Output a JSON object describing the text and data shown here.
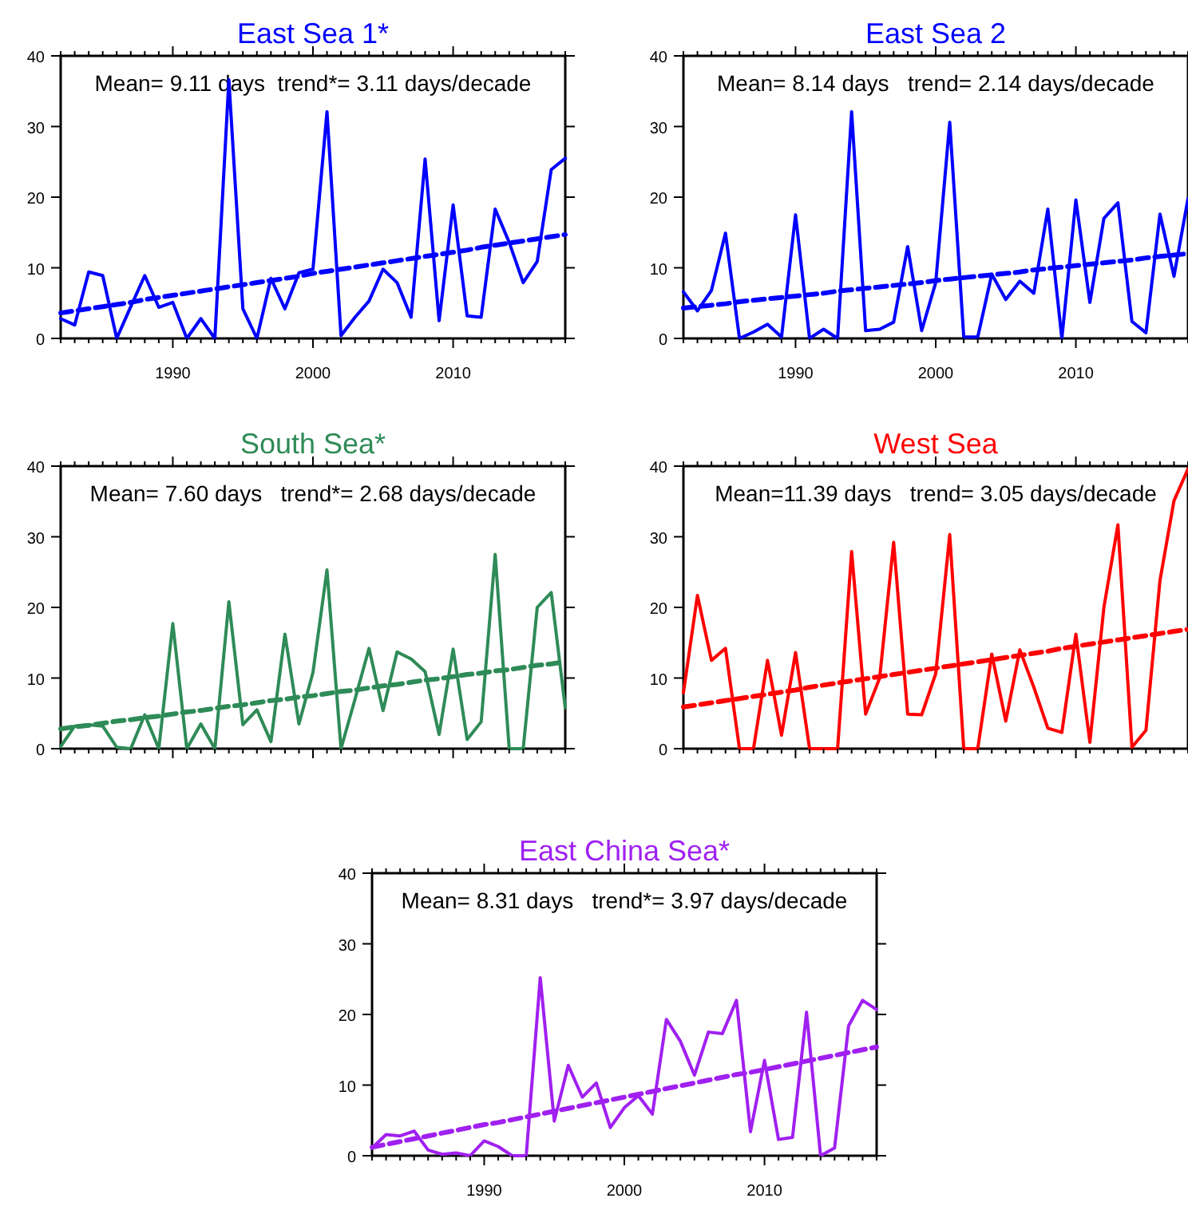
{
  "chart_data": [
    {
      "type": "line",
      "title": "East Sea 1*",
      "annotations": [
        "Mean= 9.11 days  trend*= 3.11 days/decade"
      ],
      "x": [
        1982,
        1983,
        1984,
        1985,
        1986,
        1987,
        1988,
        1989,
        1990,
        1991,
        1992,
        1993,
        1994,
        1995,
        1996,
        1997,
        1998,
        1999,
        2000,
        2001,
        2002,
        2003,
        2004,
        2005,
        2006,
        2007,
        2008,
        2009,
        2010,
        2011,
        2012,
        2013,
        2014,
        2015,
        2016,
        2017,
        2018
      ],
      "xlim": [
        1982,
        2018
      ],
      "xticks": [
        {
          "value": 1982,
          "label": null
        },
        {
          "value": 1983,
          "label": null
        },
        {
          "value": 1984,
          "label": null
        },
        {
          "value": 1985,
          "label": null
        },
        {
          "value": 1986,
          "label": null
        },
        {
          "value": 1987,
          "label": null
        },
        {
          "value": 1988,
          "label": null
        },
        {
          "value": 1989,
          "label": null
        },
        1990,
        {
          "value": 1991,
          "label": null
        },
        {
          "value": 1992,
          "label": null
        },
        {
          "value": 1993,
          "label": null
        },
        {
          "value": 1994,
          "label": null
        },
        {
          "value": 1995,
          "label": null
        },
        {
          "value": 1996,
          "label": null
        },
        {
          "value": 1997,
          "label": null
        },
        {
          "value": 1998,
          "label": null
        },
        {
          "value": 1999,
          "label": null
        },
        2000,
        {
          "value": 2001,
          "label": null
        },
        {
          "value": 2002,
          "label": null
        },
        {
          "value": 2003,
          "label": null
        },
        {
          "value": 2004,
          "label": null
        },
        {
          "value": 2005,
          "label": null
        },
        {
          "value": 2006,
          "label": null
        },
        {
          "value": 2007,
          "label": null
        },
        {
          "value": 2008,
          "label": null
        },
        {
          "value": 2009,
          "label": null
        },
        2010,
        {
          "value": 2011,
          "label": null
        },
        {
          "value": 2012,
          "label": null
        },
        {
          "value": 2013,
          "label": null
        },
        {
          "value": 2014,
          "label": null
        },
        {
          "value": 2015,
          "label": null
        },
        {
          "value": 2016,
          "label": null
        },
        {
          "value": 2017,
          "label": null
        },
        {
          "value": 2018,
          "label": null
        }
      ],
      "ylim": [
        0,
        40
      ],
      "yticks": [
        0,
        10,
        20,
        30,
        40
      ],
      "series": [
        {
          "color": "#0000ff",
          "line_style": "solid",
          "values": [
            2.8,
            1.9,
            9.4,
            8.9,
            0,
            4.5,
            8.9,
            4.4,
            5.1,
            0,
            2.8,
            0,
            36.6,
            4.2,
            0,
            8.5,
            4.2,
            9.3,
            9.8,
            32.1,
            0.4,
            3,
            5.3,
            9.8,
            7.9,
            3,
            25.4,
            2.5,
            18.9,
            3.2,
            3,
            18.3,
            13.6,
            7.9,
            10.9,
            23.9,
            25.5
          ]
        },
        {
          "type": "line",
          "color": "#0000ff",
          "line_style": "dashed",
          "values": [
            3.6,
            3.9,
            4.2,
            4.5,
            4.8,
            5.1,
            5.5,
            5.8,
            6.1,
            6.4,
            6.7,
            7.0,
            7.3,
            7.6,
            7.9,
            8.2,
            8.5,
            8.8,
            9.2,
            9.5,
            9.8,
            10.1,
            10.4,
            10.7,
            11.0,
            11.3,
            11.6,
            11.9,
            12.2,
            12.5,
            12.9,
            13.2,
            13.5,
            13.8,
            14.1,
            14.4,
            14.7
          ]
        }
      ]
    },
    {
      "type": "line",
      "title": "East Sea 2",
      "annotations": [
        "Mean= 8.14 days   trend= 2.14 days/decade"
      ],
      "x": [
        1982,
        1983,
        1984,
        1985,
        1986,
        1987,
        1988,
        1989,
        1990,
        1991,
        1992,
        1993,
        1994,
        1995,
        1996,
        1997,
        1998,
        1999,
        2000,
        2001,
        2002,
        2003,
        2004,
        2005,
        2006,
        2007,
        2008,
        2009,
        2010,
        2011,
        2012,
        2013,
        2014,
        2015,
        2016,
        2017,
        2018
      ],
      "xlim": [
        1982,
        2018
      ],
      "xticks": [
        {
          "value": 1982,
          "label": null
        },
        {
          "value": 1983,
          "label": null
        },
        {
          "value": 1984,
          "label": null
        },
        {
          "value": 1985,
          "label": null
        },
        {
          "value": 1986,
          "label": null
        },
        {
          "value": 1987,
          "label": null
        },
        {
          "value": 1988,
          "label": null
        },
        {
          "value": 1989,
          "label": null
        },
        1990,
        {
          "value": 1991,
          "label": null
        },
        {
          "value": 1992,
          "label": null
        },
        {
          "value": 1993,
          "label": null
        },
        {
          "value": 1994,
          "label": null
        },
        {
          "value": 1995,
          "label": null
        },
        {
          "value": 1996,
          "label": null
        },
        {
          "value": 1997,
          "label": null
        },
        {
          "value": 1998,
          "label": null
        },
        {
          "value": 1999,
          "label": null
        },
        2000,
        {
          "value": 2001,
          "label": null
        },
        {
          "value": 2002,
          "label": null
        },
        {
          "value": 2003,
          "label": null
        },
        {
          "value": 2004,
          "label": null
        },
        {
          "value": 2005,
          "label": null
        },
        {
          "value": 2006,
          "label": null
        },
        {
          "value": 2007,
          "label": null
        },
        {
          "value": 2008,
          "label": null
        },
        {
          "value": 2009,
          "label": null
        },
        2010,
        {
          "value": 2011,
          "label": null
        },
        {
          "value": 2012,
          "label": null
        },
        {
          "value": 2013,
          "label": null
        },
        {
          "value": 2014,
          "label": null
        },
        {
          "value": 2015,
          "label": null
        },
        {
          "value": 2016,
          "label": null
        },
        {
          "value": 2017,
          "label": null
        },
        {
          "value": 2018,
          "label": null
        }
      ],
      "ylim": [
        0,
        40
      ],
      "yticks": [
        0,
        10,
        20,
        30,
        40
      ],
      "series": [
        {
          "color": "#0000ff",
          "line_style": "solid",
          "values": [
            6.6,
            3.9,
            6.8,
            14.9,
            0,
            0.9,
            2,
            0.2,
            17.5,
            0,
            1.3,
            0,
            32.1,
            1.1,
            1.3,
            2.3,
            13,
            1.1,
            7.9,
            30.6,
            0.2,
            0.2,
            9.1,
            5.5,
            8.1,
            6.4,
            18.3,
            0,
            19.6,
            5.1,
            17,
            19.2,
            2.4,
            0.8,
            17.6,
            8.8,
            19.8
          ]
        },
        {
          "type": "line",
          "color": "#0000ff",
          "line_style": "dashed",
          "values": [
            4.3,
            4.5,
            4.7,
            4.9,
            5.2,
            5.4,
            5.6,
            5.8,
            6.0,
            6.2,
            6.4,
            6.7,
            6.9,
            7.1,
            7.3,
            7.5,
            7.7,
            7.9,
            8.2,
            8.4,
            8.6,
            8.8,
            9.0,
            9.2,
            9.4,
            9.7,
            9.9,
            10.1,
            10.3,
            10.5,
            10.7,
            10.9,
            11.1,
            11.4,
            11.6,
            11.8,
            12.0
          ]
        }
      ]
    },
    {
      "type": "line",
      "title": "South Sea*",
      "annotations": [
        "Mean= 7.60 days   trend*= 2.68 days/decade"
      ],
      "x": [
        1982,
        1983,
        1984,
        1985,
        1986,
        1987,
        1988,
        1989,
        1990,
        1991,
        1992,
        1993,
        1994,
        1995,
        1996,
        1997,
        1998,
        1999,
        2000,
        2001,
        2002,
        2003,
        2004,
        2005,
        2006,
        2007,
        2008,
        2009,
        2010,
        2011,
        2012,
        2013,
        2014,
        2015,
        2016,
        2017,
        2018
      ],
      "xlim": [
        1982,
        2018
      ],
      "xticks": [
        {
          "value": 1982,
          "label": null
        },
        {
          "value": 1983,
          "label": null
        },
        {
          "value": 1984,
          "label": null
        },
        {
          "value": 1985,
          "label": null
        },
        {
          "value": 1986,
          "label": null
        },
        {
          "value": 1987,
          "label": null
        },
        {
          "value": 1988,
          "label": null
        },
        {
          "value": 1989,
          "label": null
        },
        1990,
        {
          "value": 1991,
          "label": null
        },
        {
          "value": 1992,
          "label": null
        },
        {
          "value": 1993,
          "label": null
        },
        {
          "value": 1994,
          "label": null
        },
        {
          "value": 1995,
          "label": null
        },
        {
          "value": 1996,
          "label": null
        },
        {
          "value": 1997,
          "label": null
        },
        {
          "value": 1998,
          "label": null
        },
        {
          "value": 1999,
          "label": null
        },
        2000,
        {
          "value": 2001,
          "label": null
        },
        {
          "value": 2002,
          "label": null
        },
        {
          "value": 2003,
          "label": null
        },
        {
          "value": 2004,
          "label": null
        },
        {
          "value": 2005,
          "label": null
        },
        {
          "value": 2006,
          "label": null
        },
        {
          "value": 2007,
          "label": null
        },
        {
          "value": 2008,
          "label": null
        },
        {
          "value": 2009,
          "label": null
        },
        2010,
        {
          "value": 2011,
          "label": null
        },
        {
          "value": 2012,
          "label": null
        },
        {
          "value": 2013,
          "label": null
        },
        {
          "value": 2014,
          "label": null
        },
        {
          "value": 2015,
          "label": null
        },
        {
          "value": 2016,
          "label": null
        },
        {
          "value": 2017,
          "label": null
        },
        {
          "value": 2018,
          "label": null
        }
      ],
      "ylim": [
        0,
        40
      ],
      "yticks": [
        0,
        10,
        20,
        30,
        40
      ],
      "tick_labels": "y",
      "series": [
        {
          "color": "#2e8b57",
          "line_style": "solid",
          "values": [
            0.3,
            3.2,
            3.4,
            3.2,
            0.2,
            0,
            4.8,
            0,
            17.7,
            0,
            3.5,
            0,
            20.8,
            3.4,
            5.5,
            1,
            16.2,
            3.5,
            10.8,
            25.3,
            0,
            7,
            14.2,
            5.4,
            13.7,
            12.7,
            10.9,
            2,
            14.1,
            1.3,
            3.8,
            27.5,
            0,
            0,
            20,
            22.1,
            5.8
          ]
        },
        {
          "type": "line",
          "color": "#2e8b57",
          "line_style": "dashed",
          "values": [
            2.8,
            3.1,
            3.3,
            3.6,
            3.9,
            4.1,
            4.4,
            4.6,
            4.9,
            5.2,
            5.4,
            5.7,
            6.0,
            6.2,
            6.5,
            6.8,
            7.0,
            7.3,
            7.5,
            7.8,
            8.1,
            8.3,
            8.6,
            8.9,
            9.1,
            9.4,
            9.7,
            9.9,
            10.2,
            10.5,
            10.7,
            11.0,
            11.2,
            11.5,
            11.8,
            12.0,
            12.3
          ]
        }
      ]
    },
    {
      "type": "line",
      "title": "West Sea",
      "annotations": [
        "Mean=11.39 days   trend= 3.05 days/decade"
      ],
      "x": [
        1982,
        1983,
        1984,
        1985,
        1986,
        1987,
        1988,
        1989,
        1990,
        1991,
        1992,
        1993,
        1994,
        1995,
        1996,
        1997,
        1998,
        1999,
        2000,
        2001,
        2002,
        2003,
        2004,
        2005,
        2006,
        2007,
        2008,
        2009,
        2010,
        2011,
        2012,
        2013,
        2014,
        2015,
        2016,
        2017,
        2018
      ],
      "xlim": [
        1982,
        2018
      ],
      "xticks": [
        {
          "value": 1982,
          "label": null
        },
        {
          "value": 1983,
          "label": null
        },
        {
          "value": 1984,
          "label": null
        },
        {
          "value": 1985,
          "label": null
        },
        {
          "value": 1986,
          "label": null
        },
        {
          "value": 1987,
          "label": null
        },
        {
          "value": 1988,
          "label": null
        },
        {
          "value": 1989,
          "label": null
        },
        1990,
        {
          "value": 1991,
          "label": null
        },
        {
          "value": 1992,
          "label": null
        },
        {
          "value": 1993,
          "label": null
        },
        {
          "value": 1994,
          "label": null
        },
        {
          "value": 1995,
          "label": null
        },
        {
          "value": 1996,
          "label": null
        },
        {
          "value": 1997,
          "label": null
        },
        {
          "value": 1998,
          "label": null
        },
        {
          "value": 1999,
          "label": null
        },
        2000,
        {
          "value": 2001,
          "label": null
        },
        {
          "value": 2002,
          "label": null
        },
        {
          "value": 2003,
          "label": null
        },
        {
          "value": 2004,
          "label": null
        },
        {
          "value": 2005,
          "label": null
        },
        {
          "value": 2006,
          "label": null
        },
        {
          "value": 2007,
          "label": null
        },
        {
          "value": 2008,
          "label": null
        },
        {
          "value": 2009,
          "label": null
        },
        2010,
        {
          "value": 2011,
          "label": null
        },
        {
          "value": 2012,
          "label": null
        },
        {
          "value": 2013,
          "label": null
        },
        {
          "value": 2014,
          "label": null
        },
        {
          "value": 2015,
          "label": null
        },
        {
          "value": 2016,
          "label": null
        },
        {
          "value": 2017,
          "label": null
        },
        {
          "value": 2018,
          "label": null
        }
      ],
      "ylim": [
        0,
        40
      ],
      "yticks": [
        0,
        10,
        20,
        30,
        40
      ],
      "tick_labels": "y",
      "series": [
        {
          "color": "#ff0000",
          "line_style": "solid",
          "values": [
            7.9,
            21.7,
            12.5,
            14.2,
            0,
            0,
            12.5,
            1.9,
            13.6,
            0,
            0,
            0,
            27.9,
            4.9,
            10,
            29.2,
            4.9,
            4.8,
            10.6,
            30.3,
            0,
            0,
            13.4,
            3.9,
            14,
            8.7,
            2.9,
            2.3,
            16.2,
            0.9,
            20,
            31.7,
            0.2,
            2.6,
            23.8,
            35.1,
            39.6
          ]
        },
        {
          "type": "line",
          "color": "#ff0000",
          "line_style": "dashed",
          "values": [
            5.9,
            6.2,
            6.5,
            6.8,
            7.1,
            7.4,
            7.7,
            8.0,
            8.3,
            8.7,
            9.0,
            9.3,
            9.6,
            9.9,
            10.2,
            10.5,
            10.8,
            11.1,
            11.4,
            11.7,
            12.0,
            12.3,
            12.6,
            12.9,
            13.2,
            13.5,
            13.8,
            14.2,
            14.5,
            14.8,
            15.1,
            15.4,
            15.7,
            16.0,
            16.3,
            16.6,
            16.9
          ]
        }
      ]
    },
    {
      "type": "line",
      "title": "East China Sea*",
      "annotations": [
        "Mean= 8.31 days   trend*= 3.97 days/decade"
      ],
      "x": [
        1982,
        1983,
        1984,
        1985,
        1986,
        1987,
        1988,
        1989,
        1990,
        1991,
        1992,
        1993,
        1994,
        1995,
        1996,
        1997,
        1998,
        1999,
        2000,
        2001,
        2002,
        2003,
        2004,
        2005,
        2006,
        2007,
        2008,
        2009,
        2010,
        2011,
        2012,
        2013,
        2014,
        2015,
        2016,
        2017,
        2018
      ],
      "xlim": [
        1982,
        2018
      ],
      "xticks": [
        {
          "value": 1982,
          "label": null
        },
        {
          "value": 1983,
          "label": null
        },
        {
          "value": 1984,
          "label": null
        },
        {
          "value": 1985,
          "label": null
        },
        {
          "value": 1986,
          "label": null
        },
        {
          "value": 1987,
          "label": null
        },
        {
          "value": 1988,
          "label": null
        },
        {
          "value": 1989,
          "label": null
        },
        1990,
        {
          "value": 1991,
          "label": null
        },
        {
          "value": 1992,
          "label": null
        },
        {
          "value": 1993,
          "label": null
        },
        {
          "value": 1994,
          "label": null
        },
        {
          "value": 1995,
          "label": null
        },
        {
          "value": 1996,
          "label": null
        },
        {
          "value": 1997,
          "label": null
        },
        {
          "value": 1998,
          "label": null
        },
        {
          "value": 1999,
          "label": null
        },
        2000,
        {
          "value": 2001,
          "label": null
        },
        {
          "value": 2002,
          "label": null
        },
        {
          "value": 2003,
          "label": null
        },
        {
          "value": 2004,
          "label": null
        },
        {
          "value": 2005,
          "label": null
        },
        {
          "value": 2006,
          "label": null
        },
        {
          "value": 2007,
          "label": null
        },
        {
          "value": 2008,
          "label": null
        },
        {
          "value": 2009,
          "label": null
        },
        2010,
        {
          "value": 2011,
          "label": null
        },
        {
          "value": 2012,
          "label": null
        },
        {
          "value": 2013,
          "label": null
        },
        {
          "value": 2014,
          "label": null
        },
        {
          "value": 2015,
          "label": null
        },
        {
          "value": 2016,
          "label": null
        },
        {
          "value": 2017,
          "label": null
        },
        {
          "value": 2018,
          "label": null
        }
      ],
      "ylim": [
        0,
        40
      ],
      "yticks": [
        0,
        10,
        20,
        30,
        40
      ],
      "series": [
        {
          "color": "#a020f0",
          "line_style": "solid",
          "values": [
            1.1,
            3,
            2.8,
            3.5,
            0.8,
            0.2,
            0.4,
            0,
            2.1,
            1.3,
            0,
            0,
            25.2,
            4.9,
            12.8,
            8.3,
            10.3,
            4,
            6.8,
            8.5,
            5.9,
            19.3,
            16.2,
            11.4,
            17.5,
            17.3,
            22,
            3.4,
            13.5,
            2.3,
            2.6,
            20.3,
            0,
            1.1,
            18.4,
            22,
            20.7
          ]
        },
        {
          "type": "line",
          "color": "#a020f0",
          "line_style": "dashed",
          "values": [
            1.2,
            1.6,
            2.0,
            2.4,
            2.8,
            3.2,
            3.6,
            4.0,
            4.4,
            4.7,
            5.1,
            5.5,
            5.9,
            6.3,
            6.7,
            7.1,
            7.5,
            7.9,
            8.3,
            8.7,
            9.1,
            9.5,
            9.9,
            10.3,
            10.7,
            11.1,
            11.5,
            11.8,
            12.2,
            12.6,
            13.0,
            13.4,
            13.8,
            14.2,
            14.6,
            15.0,
            15.4
          ]
        }
      ]
    }
  ]
}
